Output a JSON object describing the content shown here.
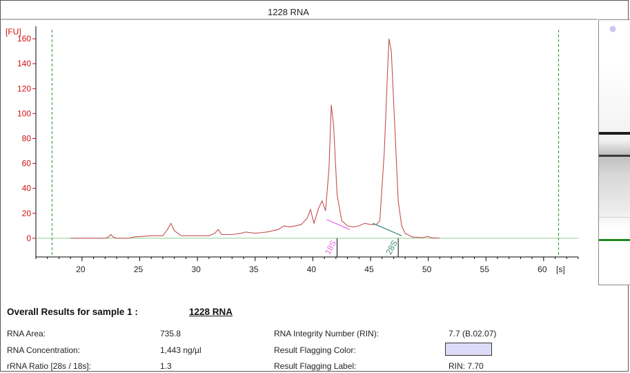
{
  "chart_data": {
    "type": "line",
    "title": "1228 RNA",
    "ylabel": "[FU]",
    "xlabel": "[s]",
    "xlim": [
      16,
      63
    ],
    "ylim": [
      -15,
      170
    ],
    "x_ticks": [
      20,
      25,
      30,
      35,
      40,
      45,
      50,
      55,
      60
    ],
    "y_ticks": [
      0,
      20,
      40,
      60,
      80,
      100,
      120,
      140,
      160
    ],
    "grid": false,
    "markers": [
      17.4,
      61.3
    ],
    "series": [
      {
        "color": "#c0504d",
        "points": [
          [
            19,
            0
          ],
          [
            22,
            0
          ],
          [
            22.3,
            1
          ],
          [
            22.5,
            3
          ],
          [
            22.7,
            1
          ],
          [
            23,
            0
          ],
          [
            24,
            0
          ],
          [
            24.5,
            1
          ],
          [
            26,
            2
          ],
          [
            27,
            2
          ],
          [
            27.4,
            7
          ],
          [
            27.7,
            12
          ],
          [
            28,
            6
          ],
          [
            28.6,
            2
          ],
          [
            30,
            2
          ],
          [
            31,
            2
          ],
          [
            31.5,
            4
          ],
          [
            31.8,
            7
          ],
          [
            32.1,
            3
          ],
          [
            33,
            3
          ],
          [
            33.8,
            4
          ],
          [
            34.2,
            5
          ],
          [
            35,
            4
          ],
          [
            36,
            5
          ],
          [
            37,
            7
          ],
          [
            37.5,
            10
          ],
          [
            38,
            9
          ],
          [
            39,
            11
          ],
          [
            39.5,
            16
          ],
          [
            39.8,
            23
          ],
          [
            40.1,
            12
          ],
          [
            40.5,
            24
          ],
          [
            40.8,
            30
          ],
          [
            41.1,
            22
          ],
          [
            41.4,
            56
          ],
          [
            41.6,
            107
          ],
          [
            41.8,
            90
          ],
          [
            42.1,
            35
          ],
          [
            42.5,
            14
          ],
          [
            43,
            10
          ],
          [
            43.5,
            9
          ],
          [
            44,
            10
          ],
          [
            44.5,
            12
          ],
          [
            45,
            11
          ],
          [
            45.5,
            11
          ],
          [
            45.8,
            14
          ],
          [
            46.2,
            70
          ],
          [
            46.5,
            140
          ],
          [
            46.6,
            160
          ],
          [
            46.8,
            150
          ],
          [
            47.1,
            90
          ],
          [
            47.4,
            30
          ],
          [
            47.7,
            10
          ],
          [
            48,
            4
          ],
          [
            48.6,
            1
          ],
          [
            49.5,
            0.5
          ],
          [
            50,
            1.5
          ],
          [
            50.2,
            0.5
          ],
          [
            51,
            0
          ]
        ]
      }
    ],
    "baselines": [
      {
        "label": "18S",
        "color": "#e86ce8",
        "from": [
          41.2,
          15
        ],
        "to": [
          43.2,
          7
        ],
        "at": 42.1
      },
      {
        "label": "28S",
        "color": "#3d8a7a",
        "from": [
          45.2,
          12
        ],
        "to": [
          47.7,
          2
        ],
        "at": 47.4
      }
    ]
  },
  "results": {
    "title_label": "Overall Results for sample 1  :",
    "title_sample": "1228 RNA",
    "rna_area_label": "RNA Area:",
    "rna_area_value": "735.8",
    "rna_conc_label": "RNA Concentration:",
    "rna_conc_value": "1,443 ng/µl",
    "rrna_ratio_label": "rRNA Ratio [28s / 18s]:",
    "rrna_ratio_value": "1.3",
    "rin_label": "RNA Integrity Number (RIN):",
    "rin_value": "7.7   (B.02.07)",
    "flag_color_label": "Result Flagging Color:",
    "flag_color": "#dcdcf8",
    "flag_label_label": "Result Flagging Label:",
    "flag_label_value": "RIN: 7.70"
  }
}
